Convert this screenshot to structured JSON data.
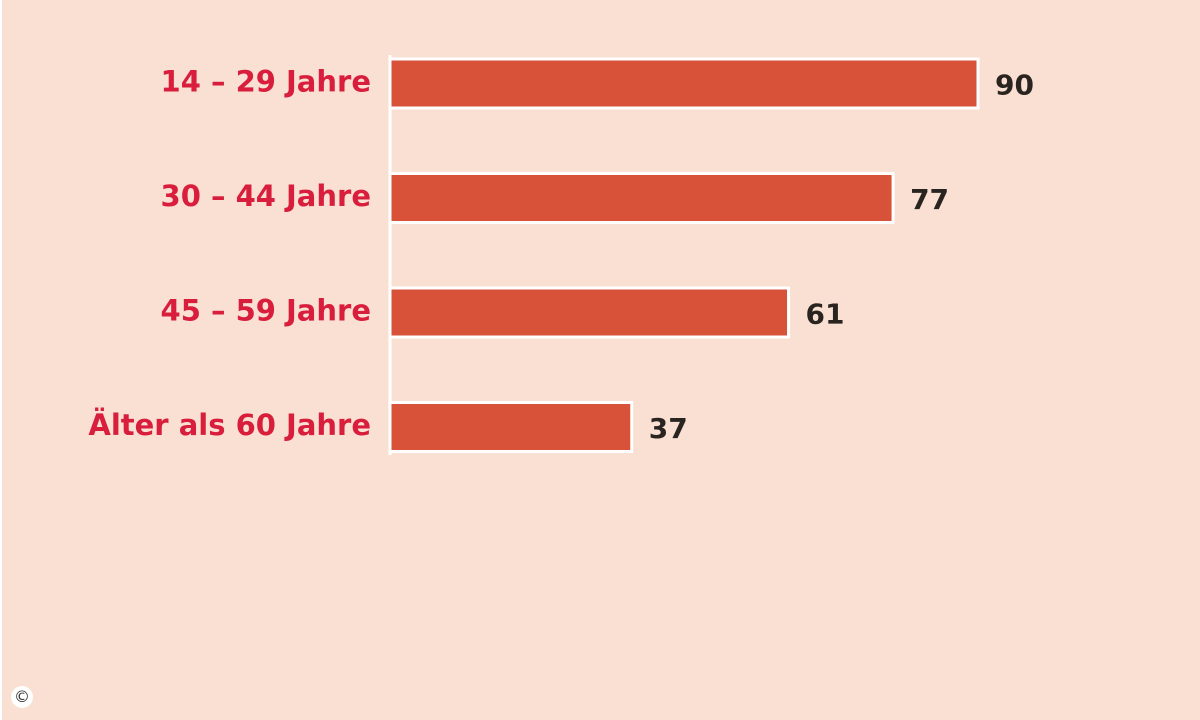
{
  "chart_data": {
    "type": "bar",
    "orientation": "horizontal",
    "categories": [
      "14 – 29 Jahre",
      "30 – 44 Jahre",
      "45 – 59 Jahre",
      "Älter als 60 Jahre"
    ],
    "values": [
      90,
      77,
      61,
      37
    ],
    "data_labels": [
      "90",
      "77",
      "61",
      "37"
    ],
    "title": "",
    "xlabel": "",
    "ylabel": "",
    "xlim": [
      0,
      90
    ],
    "grid": false,
    "legend": "none",
    "colors": {
      "bar": "#d8523a",
      "category_label": "#d81e3c",
      "value_label": "#2a2420",
      "background": "#f9e0d2",
      "axis": "#ffffff"
    }
  },
  "footer": {
    "copyright_symbol": "©"
  }
}
